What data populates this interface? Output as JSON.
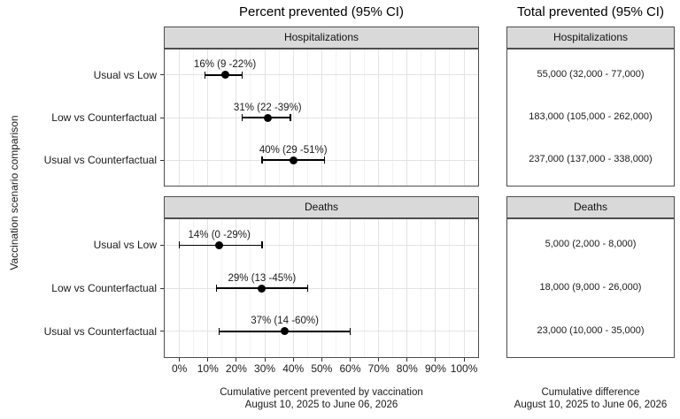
{
  "colors": {
    "strip_bg": "#d9d9d9",
    "panel_border": "#4d4d4d",
    "grid_major": "#e3e3e3",
    "grid_minor": "#f2f2f2",
    "point": "#000000",
    "text": "#1a1a1a"
  },
  "chart_data": [
    {
      "type": "scatter",
      "subtype": "forest-plot-with-error-bars",
      "title": "Percent prevented (95% CI)",
      "ylabel": "Vaccination scenario comparison",
      "xlabel_lines": [
        "Cumulative percent prevented by vaccination",
        "August 10, 2025 to June 06, 2026"
      ],
      "xlim": [
        0,
        100
      ],
      "x_ticks": [
        "0%",
        "10%",
        "20%",
        "30%",
        "40%",
        "50%",
        "60%",
        "70%",
        "80%",
        "90%",
        "100%"
      ],
      "grid": "on",
      "legend": "none",
      "facets": [
        {
          "label": "Hospitalizations",
          "rows": [
            {
              "category": "Usual vs Low",
              "estimate": 16,
              "lower": 9,
              "upper": 22,
              "label": "16% (9 -22%)"
            },
            {
              "category": "Low vs Counterfactual",
              "estimate": 31,
              "lower": 22,
              "upper": 39,
              "label": "31% (22 -39%)"
            },
            {
              "category": "Usual vs Counterfactual",
              "estimate": 40,
              "lower": 29,
              "upper": 51,
              "label": "40% (29 -51%)"
            }
          ]
        },
        {
          "label": "Deaths",
          "rows": [
            {
              "category": "Usual vs Low",
              "estimate": 14,
              "lower": 0,
              "upper": 29,
              "label": "14% (0 -29%)"
            },
            {
              "category": "Low vs Counterfactual",
              "estimate": 29,
              "lower": 13,
              "upper": 45,
              "label": "29% (13 -45%)"
            },
            {
              "category": "Usual vs Counterfactual",
              "estimate": 37,
              "lower": 14,
              "upper": 60,
              "label": "37% (14 -60%)"
            }
          ]
        }
      ]
    },
    {
      "type": "table",
      "title": "Total prevented (95% CI)",
      "xlabel_lines": [
        "Cumulative difference",
        "August 10, 2025 to June 06, 2026"
      ],
      "facets": [
        {
          "label": "Hospitalizations",
          "values": [
            "55,000 (32,000 - 77,000)",
            "183,000 (105,000 - 262,000)",
            "237,000 (137,000 - 338,000)"
          ]
        },
        {
          "label": "Deaths",
          "values": [
            "5,000 (2,000 - 8,000)",
            "18,000 (9,000 - 26,000)",
            "23,000 (10,000 - 35,000)"
          ]
        }
      ]
    }
  ]
}
